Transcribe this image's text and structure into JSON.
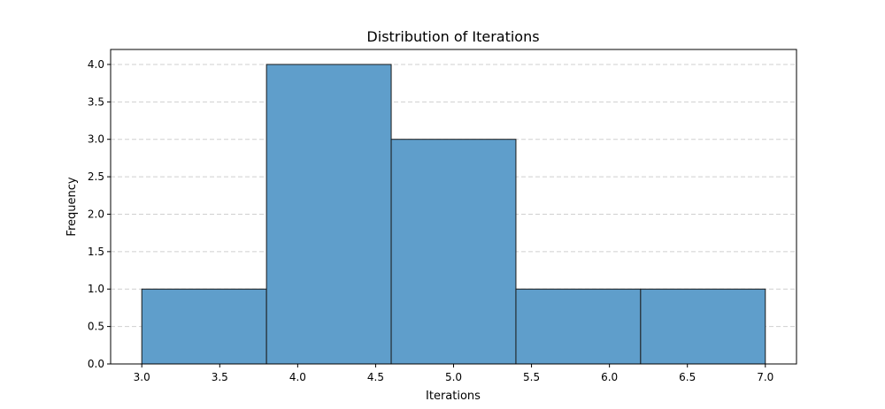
{
  "chart_data": {
    "type": "bar",
    "title": "Distribution of Iterations",
    "xlabel": "Iterations",
    "ylabel": "Frequency",
    "bins": [
      {
        "x0": 3.0,
        "x1": 3.8,
        "count": 1
      },
      {
        "x0": 3.8,
        "x1": 4.6,
        "count": 4
      },
      {
        "x0": 4.6,
        "x1": 5.4,
        "count": 3
      },
      {
        "x0": 5.4,
        "x1": 6.2,
        "count": 1
      },
      {
        "x0": 6.2,
        "x1": 7.0,
        "count": 1
      }
    ],
    "xlim": [
      2.8,
      7.2
    ],
    "ylim": [
      0,
      4.2
    ],
    "xticks": [
      "3.0",
      "3.5",
      "4.0",
      "4.5",
      "5.0",
      "5.5",
      "6.0",
      "6.5",
      "7.0"
    ],
    "yticks": [
      "0.0",
      "0.5",
      "1.0",
      "1.5",
      "2.0",
      "2.5",
      "3.0",
      "3.5",
      "4.0"
    ],
    "grid": "y-dashed",
    "bar_color": "#5f9ecb",
    "edge_color": "#1a1a1a"
  }
}
